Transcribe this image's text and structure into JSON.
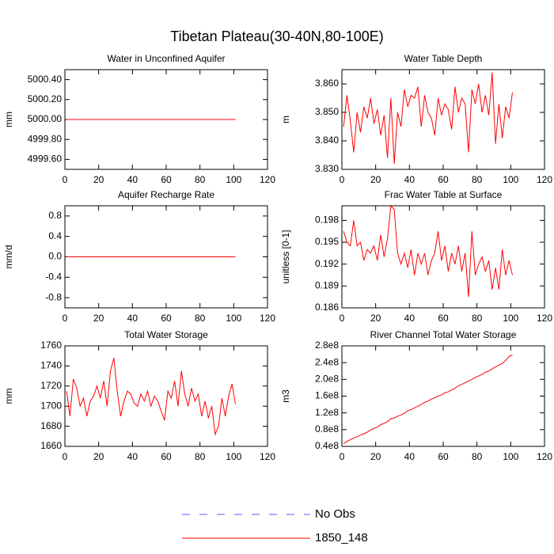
{
  "title": "Tibetan Plateau(30-40N,80-100E)",
  "legend": [
    {
      "name": "No Obs",
      "color": "#5a5aff",
      "dash": true
    },
    {
      "name": "1850_148",
      "color": "#ff0000",
      "dash": false
    }
  ],
  "chart_data": [
    {
      "type": "line",
      "title": "Water in Unconfined Aquifer",
      "ylabel": "mm",
      "color": "#ff0000",
      "x": [
        1,
        101
      ],
      "values": [
        5000,
        5000
      ],
      "xlim": [
        0,
        120
      ],
      "xticks": [
        0,
        20,
        40,
        60,
        80,
        100,
        120
      ],
      "ylim": [
        4999.5,
        5000.5
      ],
      "yticks": [
        {
          "value": 4999.6,
          "label": "4999.60"
        },
        {
          "value": 4999.8,
          "label": "4999.80"
        },
        {
          "value": 5000,
          "label": "5000.00"
        },
        {
          "value": 5000.2,
          "label": "5000.20"
        },
        {
          "value": 5000.4,
          "label": "5000.40"
        }
      ]
    },
    {
      "type": "line",
      "title": "Water Table Depth",
      "ylabel": "m",
      "color": "#ff0000",
      "x": [
        1,
        3,
        5,
        7,
        9,
        11,
        13,
        15,
        17,
        19,
        21,
        23,
        25,
        27,
        29,
        31,
        33,
        35,
        37,
        39,
        41,
        43,
        45,
        47,
        49,
        51,
        53,
        55,
        57,
        59,
        61,
        63,
        65,
        67,
        69,
        71,
        73,
        75,
        77,
        79,
        81,
        83,
        85,
        87,
        89,
        91,
        93,
        95,
        97,
        99,
        101
      ],
      "values": [
        3.845,
        3.856,
        3.847,
        3.836,
        3.85,
        3.843,
        3.852,
        3.848,
        3.855,
        3.846,
        3.851,
        3.842,
        3.849,
        3.834,
        3.855,
        3.832,
        3.85,
        3.845,
        3.858,
        3.852,
        3.856,
        3.855,
        3.859,
        3.845,
        3.856,
        3.85,
        3.848,
        3.842,
        3.855,
        3.849,
        3.853,
        3.851,
        3.844,
        3.859,
        3.85,
        3.855,
        3.853,
        3.836,
        3.858,
        3.853,
        3.86,
        3.85,
        3.856,
        3.849,
        3.864,
        3.839,
        3.853,
        3.841,
        3.852,
        3.848,
        3.857
      ],
      "xlim": [
        0,
        120
      ],
      "xticks": [
        0,
        20,
        40,
        60,
        80,
        100,
        120
      ],
      "ylim": [
        3.83,
        3.865
      ],
      "yticks": [
        {
          "value": 3.83,
          "label": "3.830"
        },
        {
          "value": 3.84,
          "label": "3.840"
        },
        {
          "value": 3.85,
          "label": "3.850"
        },
        {
          "value": 3.86,
          "label": "3.860"
        }
      ]
    },
    {
      "type": "line",
      "title": "Aquifer Recharge Rate",
      "ylabel": "mm/d",
      "color": "#ff0000",
      "x": [
        1,
        101
      ],
      "values": [
        0,
        0
      ],
      "xlim": [
        0,
        120
      ],
      "xticks": [
        0,
        20,
        40,
        60,
        80,
        100,
        120
      ],
      "ylim": [
        -1,
        1
      ],
      "yticks": [
        -0.8,
        -0.4,
        {
          "value": 0,
          "label": "0.0"
        },
        0.4,
        0.8
      ]
    },
    {
      "type": "line",
      "title": "Frac Water Table at Surface",
      "ylabel": "unitless [0-1]",
      "color": "#ff0000",
      "x": [
        1,
        3,
        5,
        7,
        9,
        11,
        13,
        15,
        17,
        19,
        21,
        23,
        25,
        27,
        29,
        31,
        33,
        35,
        37,
        39,
        41,
        43,
        45,
        47,
        49,
        51,
        53,
        55,
        57,
        59,
        61,
        63,
        65,
        67,
        69,
        71,
        73,
        75,
        77,
        79,
        81,
        83,
        85,
        87,
        89,
        91,
        93,
        95,
        97,
        99,
        101
      ],
      "values": [
        0.1965,
        0.195,
        0.1945,
        0.198,
        0.1945,
        0.195,
        0.1925,
        0.194,
        0.1935,
        0.1945,
        0.1925,
        0.196,
        0.193,
        0.1955,
        0.2,
        0.1995,
        0.1935,
        0.192,
        0.1935,
        0.1915,
        0.194,
        0.1905,
        0.1935,
        0.192,
        0.1935,
        0.1905,
        0.1925,
        0.1935,
        0.1965,
        0.1925,
        0.1945,
        0.191,
        0.1935,
        0.192,
        0.1945,
        0.191,
        0.1935,
        0.1875,
        0.1965,
        0.1905,
        0.192,
        0.193,
        0.191,
        0.1925,
        0.1885,
        0.1915,
        0.1885,
        0.194,
        0.1905,
        0.1925,
        0.1905
      ],
      "xlim": [
        0,
        120
      ],
      "xticks": [
        0,
        20,
        40,
        60,
        80,
        100,
        120
      ],
      "ylim": [
        0.186,
        0.2
      ],
      "yticks": [
        0.186,
        0.189,
        0.192,
        0.195,
        0.198
      ]
    },
    {
      "type": "line",
      "title": "Total Water Storage",
      "ylabel": "mm",
      "color": "#ff0000",
      "x": [
        1,
        3,
        5,
        7,
        9,
        11,
        13,
        15,
        17,
        19,
        21,
        23,
        25,
        27,
        29,
        31,
        33,
        35,
        37,
        39,
        41,
        43,
        45,
        47,
        49,
        51,
        53,
        55,
        57,
        59,
        61,
        63,
        65,
        67,
        69,
        71,
        73,
        75,
        77,
        79,
        81,
        83,
        85,
        87,
        89,
        91,
        93,
        95,
        97,
        99,
        101
      ],
      "values": [
        1715,
        1690,
        1727,
        1718,
        1700,
        1708,
        1690,
        1705,
        1710,
        1720,
        1708,
        1725,
        1700,
        1735,
        1748,
        1715,
        1690,
        1705,
        1715,
        1712,
        1703,
        1700,
        1712,
        1705,
        1715,
        1700,
        1710,
        1705,
        1695,
        1686,
        1715,
        1708,
        1725,
        1700,
        1735,
        1712,
        1700,
        1718,
        1705,
        1712,
        1690,
        1705,
        1688,
        1700,
        1672,
        1680,
        1708,
        1690,
        1710,
        1722,
        1702
      ],
      "xlim": [
        0,
        120
      ],
      "xticks": [
        0,
        20,
        40,
        60,
        80,
        100,
        120
      ],
      "ylim": [
        1660,
        1760
      ],
      "yticks": [
        1660,
        1680,
        1700,
        1720,
        1740,
        1760
      ]
    },
    {
      "type": "line",
      "title": "River Channel Total Water Storage",
      "ylabel": "m3",
      "color": "#ff0000",
      "x": [
        1,
        3,
        5,
        7,
        9,
        11,
        13,
        15,
        17,
        19,
        21,
        23,
        25,
        27,
        29,
        31,
        33,
        35,
        37,
        39,
        41,
        43,
        45,
        47,
        49,
        51,
        53,
        55,
        57,
        59,
        61,
        63,
        65,
        67,
        69,
        71,
        73,
        75,
        77,
        79,
        81,
        83,
        85,
        87,
        89,
        91,
        93,
        95,
        97,
        99,
        101
      ],
      "values": [
        47000000.0,
        52000000.0,
        56000000.0,
        60000000.0,
        63000000.0,
        67000000.0,
        70000000.0,
        74000000.0,
        79000000.0,
        83000000.0,
        86000000.0,
        92000000.0,
        95000000.0,
        99000000.0,
        106000000.0,
        108000000.0,
        112000000.0,
        115000000.0,
        119000000.0,
        125000000.0,
        128000000.0,
        132000000.0,
        136000000.0,
        140000000.0,
        145000000.0,
        148000000.0,
        153000000.0,
        156000000.0,
        160000000.0,
        163000000.0,
        168000000.0,
        170000000.0,
        175000000.0,
        179000000.0,
        185000000.0,
        188000000.0,
        192000000.0,
        196000000.0,
        200000000.0,
        205000000.0,
        208000000.0,
        212000000.0,
        217000000.0,
        220000000.0,
        225000000.0,
        230000000.0,
        234000000.0,
        238000000.0,
        245000000.0,
        255000000.0,
        258000000.0
      ],
      "xlim": [
        0,
        120
      ],
      "xticks": [
        0,
        20,
        40,
        60,
        80,
        100,
        120
      ],
      "ylim": [
        40000000.0,
        280000000.0
      ],
      "yticks": [
        {
          "value": 40000000.0,
          "label": "0.4e8"
        },
        {
          "value": 80000000.0,
          "label": "0.8e8"
        },
        {
          "value": 120000000.0,
          "label": "1.2e8"
        },
        {
          "value": 160000000.0,
          "label": "1.6e8"
        },
        {
          "value": 200000000.0,
          "label": "2.0e8"
        },
        {
          "value": 240000000.0,
          "label": "2.4e8"
        },
        {
          "value": 280000000.0,
          "label": "2.8e8"
        }
      ]
    }
  ]
}
